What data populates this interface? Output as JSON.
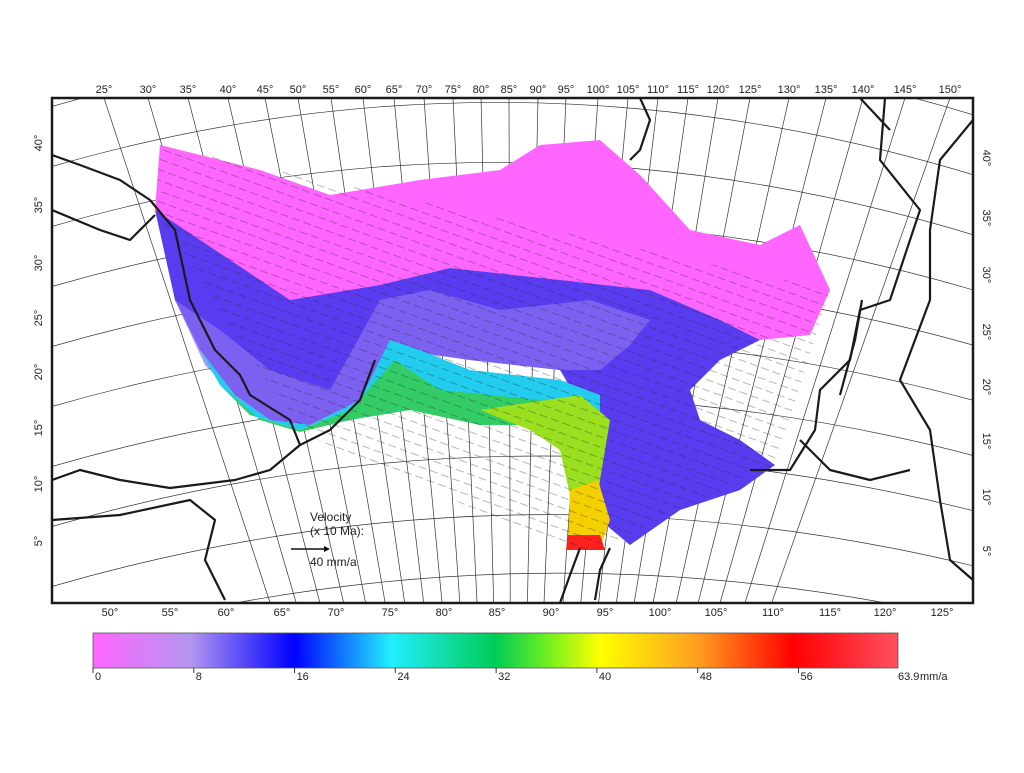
{
  "map": {
    "top_longitude_labels": [
      "25°",
      "30°",
      "35°",
      "40°",
      "45°",
      "50°",
      "55°",
      "60°",
      "65°",
      "70°",
      "75°",
      "80°",
      "85°",
      "90°",
      "95°",
      "100°",
      "105°",
      "110°",
      "115°",
      "120°",
      "125°",
      "130°",
      "135°",
      "140°",
      "145°",
      "150°"
    ],
    "bottom_longitude_labels": [
      "50°",
      "55°",
      "60°",
      "65°",
      "70°",
      "75°",
      "80°",
      "85°",
      "90°",
      "95°",
      "100°",
      "105°",
      "110°",
      "115°",
      "120°",
      "125°"
    ],
    "left_latitude_labels": [
      "40°",
      "35°",
      "30°",
      "25°",
      "20°",
      "15°",
      "10°",
      "5°"
    ],
    "right_latitude_labels": [
      "40°",
      "35°",
      "30°",
      "25°",
      "20°",
      "15°",
      "10°",
      "5°"
    ],
    "velocity_legend": {
      "title": "Velocity",
      "subtitle": "(x 10 Ma):",
      "scale_label": "40 mm/a"
    },
    "colorbar": {
      "lim": [
        0,
        63.9
      ],
      "ticks": [
        0,
        8,
        16,
        24,
        32,
        40,
        48,
        56
      ],
      "max_label": "63.9",
      "unit": "mm/a"
    }
  }
}
